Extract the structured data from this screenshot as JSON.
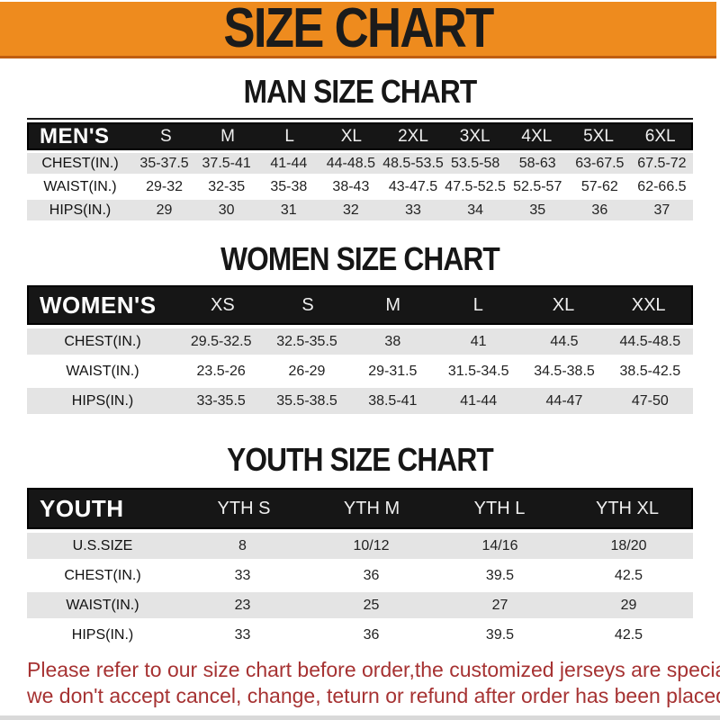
{
  "banner": {
    "title": "SIZE CHART",
    "bg_color": "#EE8B1E",
    "border_color": "#C05E10"
  },
  "sections": [
    {
      "id": "men",
      "heading": "MAN SIZE CHART",
      "table": {
        "header": [
          "MEN'S",
          "S",
          "M",
          "L",
          "XL",
          "2XL",
          "3XL",
          "4XL",
          "5XL",
          "6XL"
        ],
        "rows": [
          {
            "label": "CHEST(IN.)",
            "values": [
              "35-37.5",
              "37.5-41",
              "41-44",
              "44-48.5",
              "48.5-53.5",
              "53.5-58",
              "58-63",
              "63-67.5",
              "67.5-72"
            ]
          },
          {
            "label": "WAIST(IN.)",
            "values": [
              "29-32",
              "32-35",
              "35-38",
              "38-43",
              "43-47.5",
              "47.5-52.5",
              "52.5-57",
              "57-62",
              "62-66.5"
            ]
          },
          {
            "label": "HIPS(IN.)",
            "values": [
              "29",
              "30",
              "31",
              "32",
              "33",
              "34",
              "35",
              "36",
              "37"
            ]
          }
        ]
      }
    },
    {
      "id": "women",
      "heading": "WOMEN SIZE CHART",
      "table": {
        "header": [
          "WOMEN'S",
          "XS",
          "S",
          "M",
          "L",
          "XL",
          "XXL"
        ],
        "rows": [
          {
            "label": "CHEST(IN.)",
            "values": [
              "29.5-32.5",
              "32.5-35.5",
              "38",
              "41",
              "44.5",
              "44.5-48.5"
            ]
          },
          {
            "label": "WAIST(IN.)",
            "values": [
              "23.5-26",
              "26-29",
              "29-31.5",
              "31.5-34.5",
              "34.5-38.5",
              "38.5-42.5"
            ]
          },
          {
            "label": "HIPS(IN.)",
            "values": [
              "33-35.5",
              "35.5-38.5",
              "38.5-41",
              "41-44",
              "44-47",
              "47-50"
            ]
          }
        ]
      }
    },
    {
      "id": "youth",
      "heading": "YOUTH SIZE CHART",
      "table": {
        "header": [
          "YOUTH",
          "YTH S",
          "YTH M",
          "YTH L",
          "YTH XL"
        ],
        "rows": [
          {
            "label": "U.S.SIZE",
            "values": [
              "8",
              "10/12",
              "14/16",
              "18/20"
            ]
          },
          {
            "label": "CHEST(IN.)",
            "values": [
              "33",
              "36",
              "39.5",
              "42.5"
            ]
          },
          {
            "label": "WAIST(IN.)",
            "values": [
              "23",
              "25",
              "27",
              "29"
            ]
          },
          {
            "label": "HIPS(IN.)",
            "values": [
              "33",
              "36",
              "39.5",
              "42.5"
            ]
          }
        ]
      }
    }
  ],
  "footer": {
    "line1": "Please refer to our size chart before order,the customized jerseys are special products,",
    "line2": "we don't accept cancel, change, teturn or refund after order has been placed!"
  },
  "colors": {
    "stripe_row": "#E4E4E4",
    "header_bar": "#161616",
    "notice_text": "#A63232"
  }
}
